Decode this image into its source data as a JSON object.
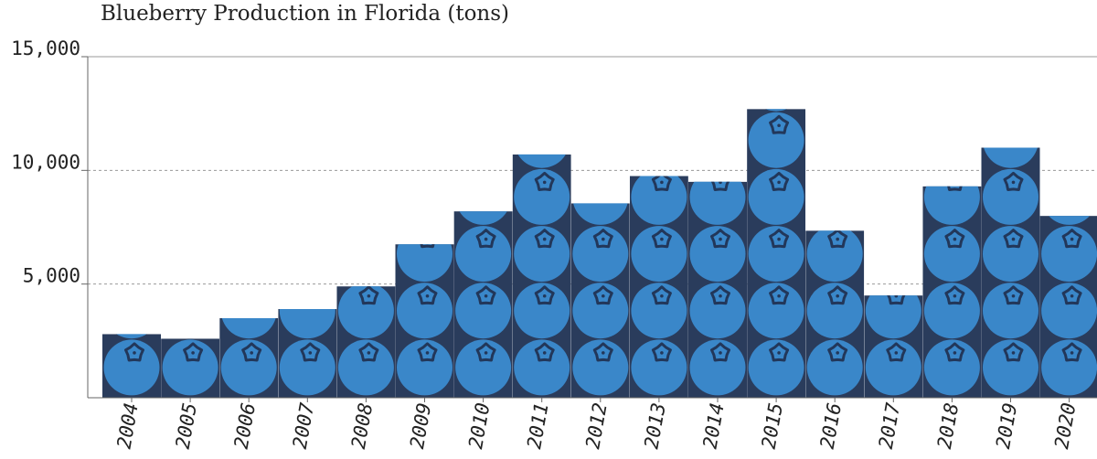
{
  "chart_data": {
    "type": "bar",
    "title": "Blueberry Production in Florida (tons)",
    "xlabel": "",
    "ylabel": "",
    "categories": [
      "2004",
      "2005",
      "2006",
      "2007",
      "2008",
      "2009",
      "2010",
      "2011",
      "2012",
      "2013",
      "2014",
      "2015",
      "2016",
      "2017",
      "2018",
      "2019",
      "2020"
    ],
    "values": [
      2800,
      2600,
      3500,
      3900,
      4900,
      6750,
      8200,
      10700,
      8550,
      9750,
      9500,
      12700,
      7350,
      4500,
      9300,
      11000,
      8000
    ],
    "ylim": [
      0,
      15000
    ],
    "yticks": [
      {
        "value": 5000,
        "label": "5,000"
      },
      {
        "value": 10000,
        "label": "10,000"
      },
      {
        "value": 15000,
        "label": "15,000"
      }
    ],
    "grid": true,
    "pictogram_unit": 2500,
    "colors": {
      "bar": "#2a3c5c",
      "berry": "#3a87c9",
      "crown": "#22375a",
      "grid": "#999999",
      "axis": "#666666",
      "text": "#222222"
    }
  }
}
